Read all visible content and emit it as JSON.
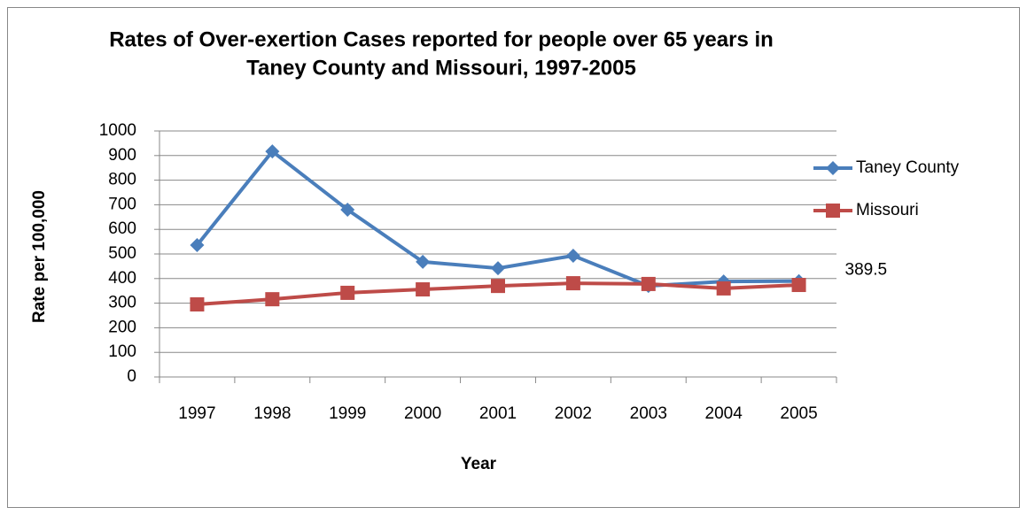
{
  "chart_data": {
    "type": "line",
    "title": [
      "Rates of Over-exertion Cases reported for people over 65 years in",
      "Taney County and Missouri, 1997-2005"
    ],
    "x_label": "Year",
    "y_label": "Rate per 100,000",
    "categories": [
      "1997",
      "1998",
      "1999",
      "2000",
      "2001",
      "2002",
      "2003",
      "2004",
      "2005"
    ],
    "series": [
      {
        "name": "Taney County",
        "color": "#4a7ebb",
        "marker": "diamond",
        "values": [
          536,
          917,
          680,
          468,
          442,
          493,
          370,
          388,
          389.5
        ],
        "value_labels": [
          null,
          null,
          null,
          null,
          null,
          null,
          null,
          null,
          "389.5"
        ]
      },
      {
        "name": "Missouri",
        "color": "#be4b48",
        "marker": "square",
        "values": [
          295,
          316,
          342,
          356,
          370,
          381,
          378,
          360,
          374
        ]
      }
    ],
    "ylim": [
      0,
      1000
    ],
    "yticks": [
      0,
      100,
      200,
      300,
      400,
      500,
      600,
      700,
      800,
      900,
      1000
    ],
    "grid": true,
    "legend": "right"
  }
}
